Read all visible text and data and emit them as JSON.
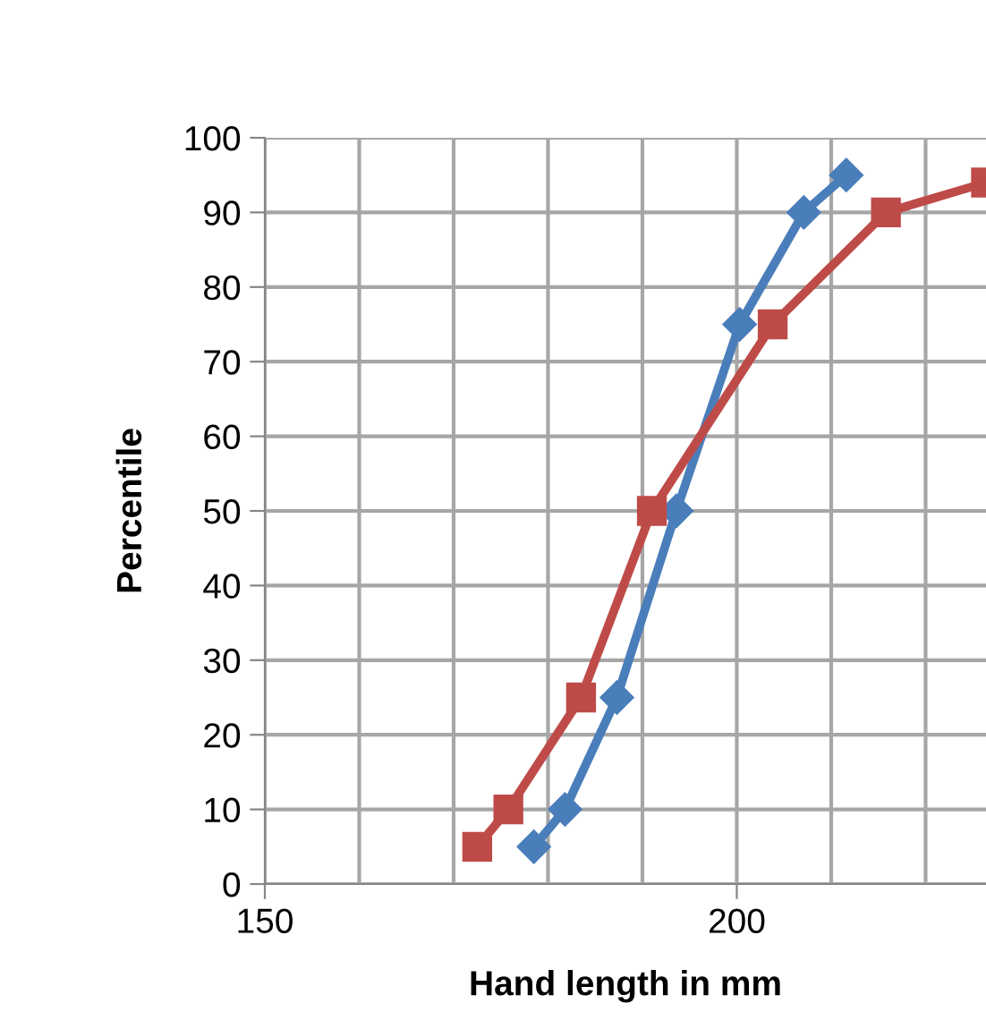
{
  "chart_data": {
    "type": "line",
    "xlabel": "Hand length in mm",
    "ylabel": "Percentile",
    "xlim": [
      150,
      226.4
    ],
    "xticks": [
      150,
      200
    ],
    "ylim": [
      0,
      100
    ],
    "yticks": [
      0,
      10,
      20,
      30,
      40,
      50,
      60,
      70,
      80,
      90,
      100
    ],
    "grid": true,
    "series": [
      {
        "color": "#4a7ebb",
        "marker": "diamond",
        "x": [
          178.5,
          181.8,
          187.3,
          193.6,
          200.3,
          207.1,
          211.6
        ],
        "values": [
          5,
          10,
          25,
          50,
          75,
          90,
          95
        ]
      },
      {
        "color": "#be4b48",
        "marker": "square",
        "x": [
          172.5,
          175.8,
          183.5,
          191,
          203.8,
          215.8,
          226.4
        ],
        "values": [
          5,
          10,
          25,
          50,
          75,
          90,
          94
        ]
      }
    ]
  }
}
